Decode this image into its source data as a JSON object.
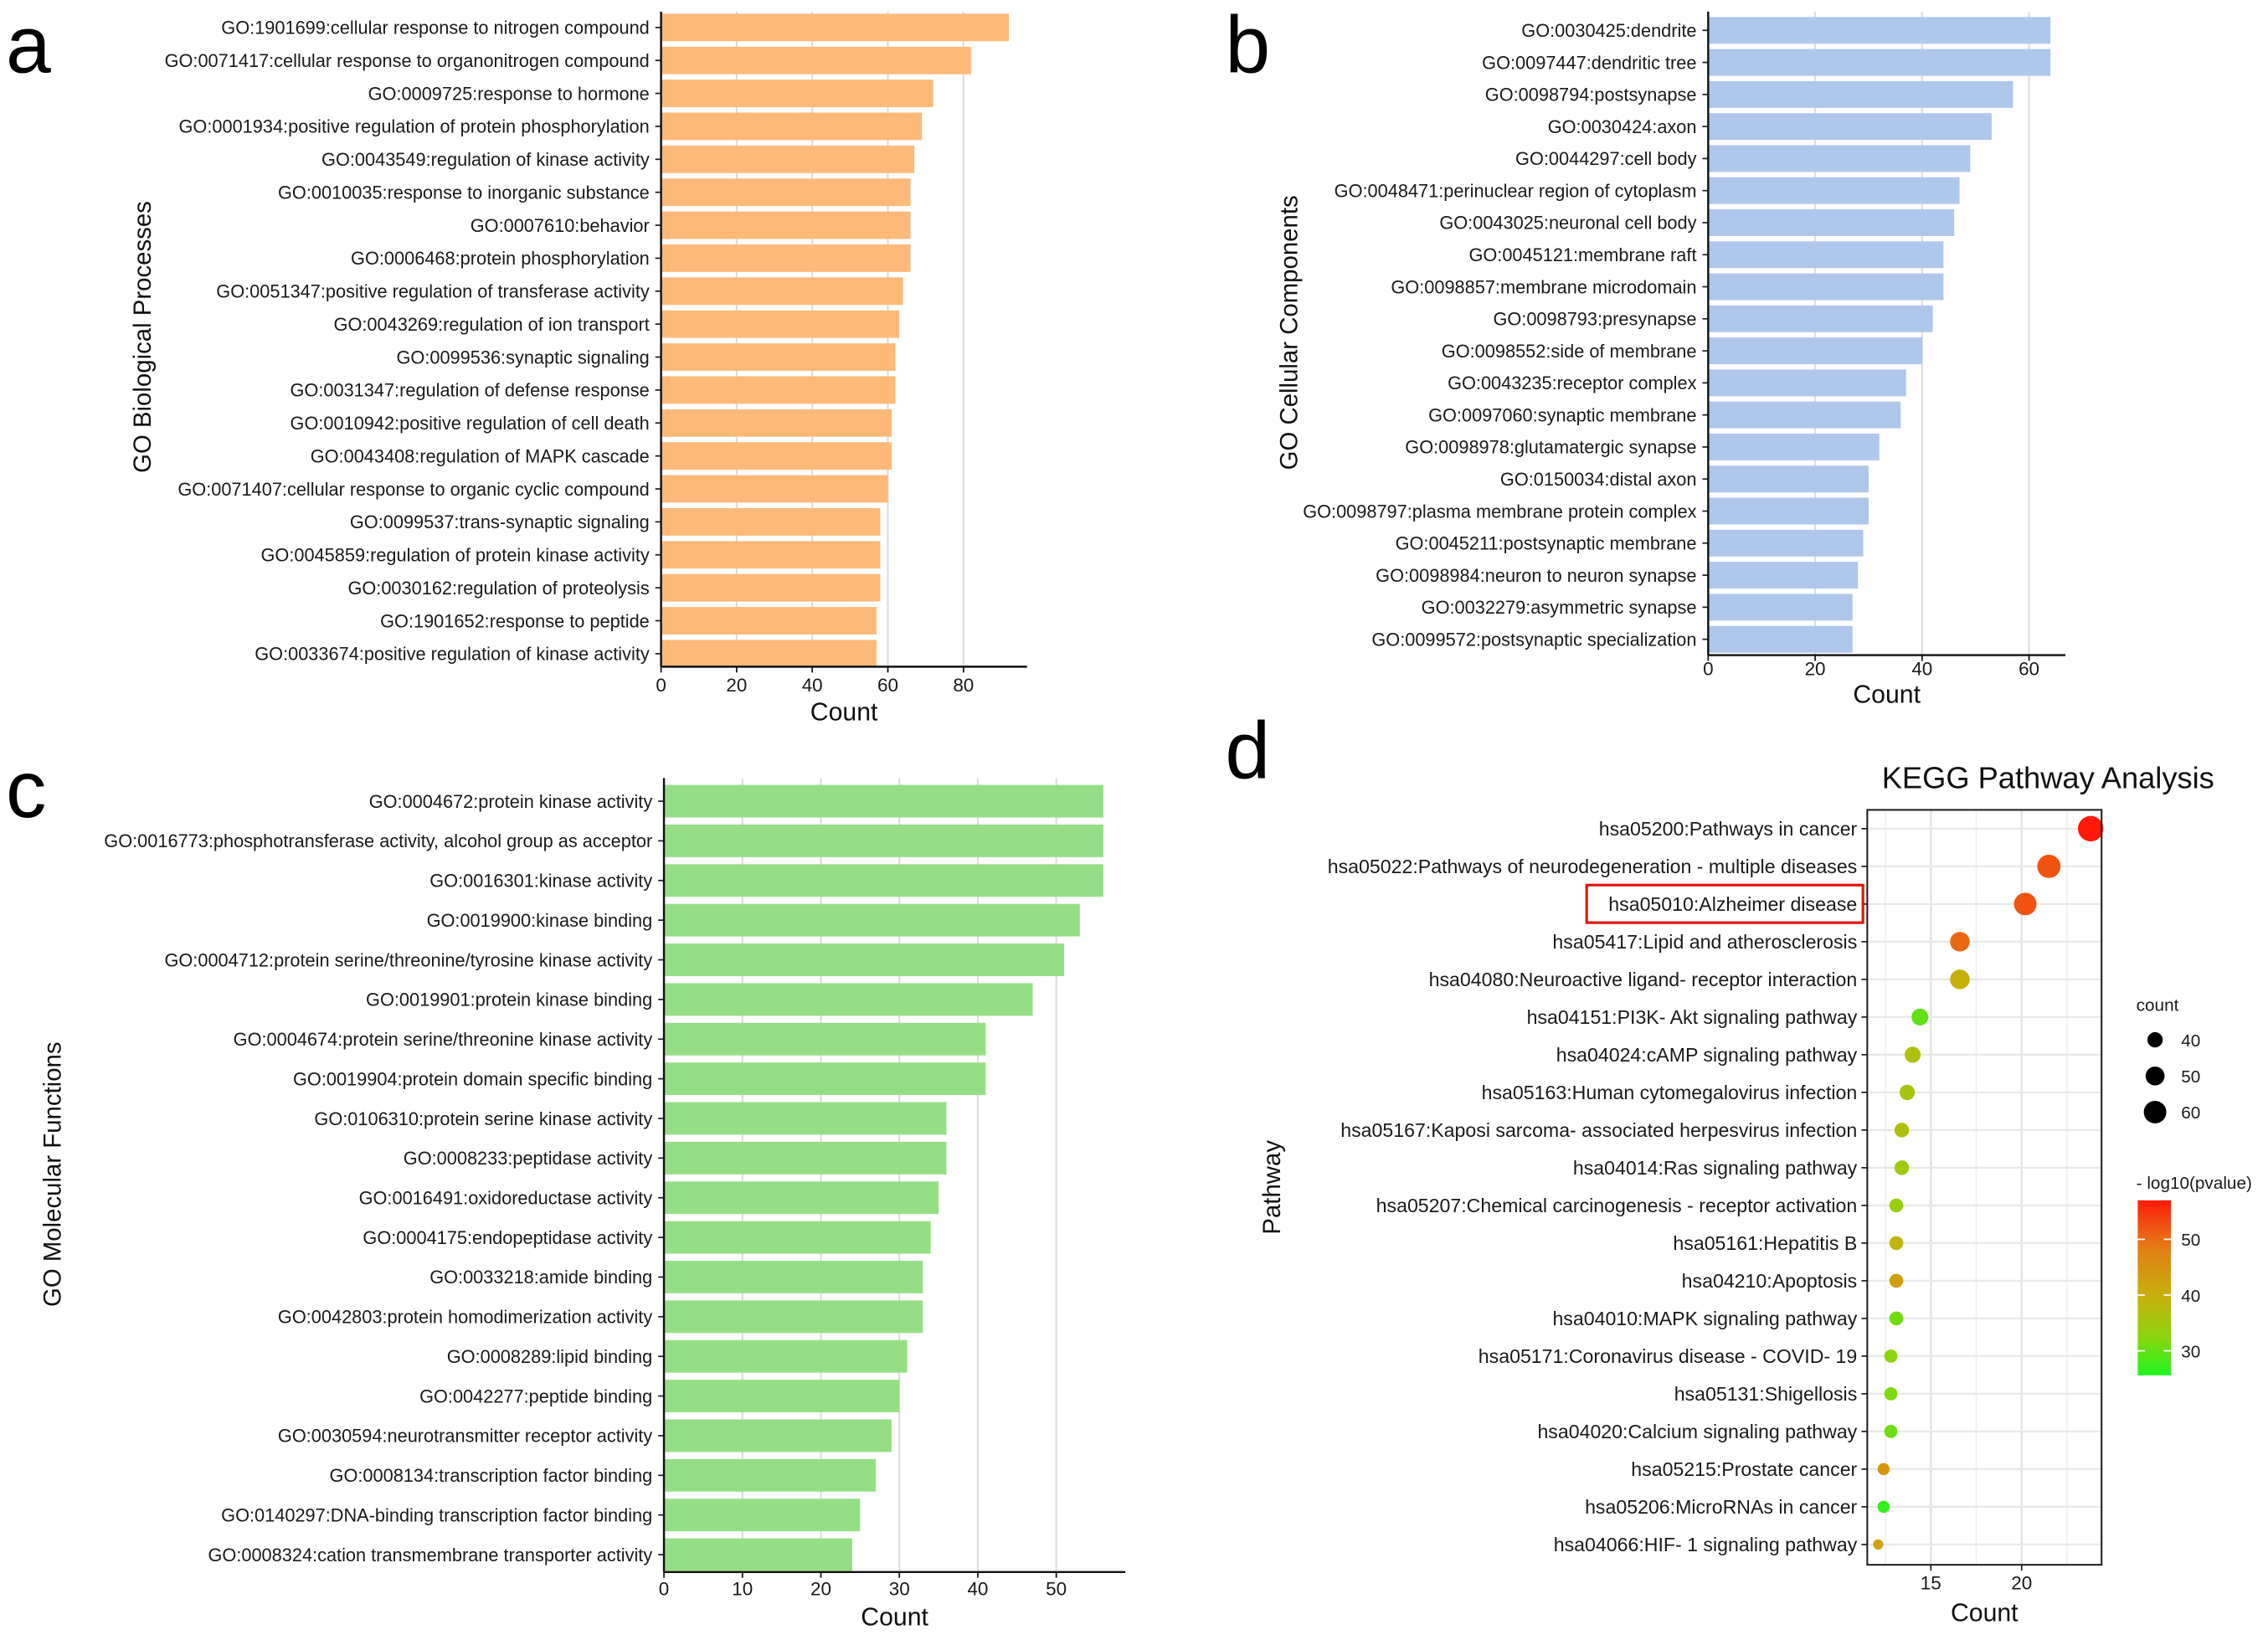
{
  "chart_data": [
    {
      "panel": "a",
      "type": "bar",
      "orientation": "horizontal",
      "ylabel": "GO Biological Processes",
      "xlabel": "Count",
      "xlim": [
        0,
        96.8
      ],
      "xticks": [
        0,
        20,
        40,
        60,
        80
      ],
      "grid": "vertical major",
      "color": "#FDB97A",
      "categories": [
        "GO:1901699:cellular response to nitrogen compound",
        "GO:0071417:cellular response to organonitrogen compound",
        "GO:0009725:response to hormone",
        "GO:0001934:positive regulation of protein phosphorylation",
        "GO:0043549:regulation of kinase activity",
        "GO:0010035:response to inorganic substance",
        "GO:0007610:behavior",
        "GO:0006468:protein phosphorylation",
        "GO:0051347:positive regulation of transferase activity",
        "GO:0043269:regulation of ion transport",
        "GO:0099536:synaptic signaling",
        "GO:0031347:regulation of defense response",
        "GO:0010942:positive regulation of cell death",
        "GO:0043408:regulation of MAPK cascade",
        "GO:0071407:cellular response to organic cyclic compound",
        "GO:0099537:trans-synaptic signaling",
        "GO:0045859:regulation of protein kinase activity",
        "GO:0030162:regulation of proteolysis",
        "GO:1901652:response to peptide",
        "GO:0033674:positive regulation of kinase activity"
      ],
      "values": [
        92,
        82,
        72,
        69,
        67,
        66,
        66,
        66,
        64,
        63,
        62,
        62,
        61,
        61,
        60,
        58,
        58,
        58,
        57,
        57
      ]
    },
    {
      "panel": "b",
      "type": "bar",
      "orientation": "horizontal",
      "ylabel": "GO Cellular Components",
      "xlabel": "Count",
      "xlim": [
        0,
        66.8
      ],
      "xticks": [
        0,
        20,
        40,
        60
      ],
      "grid": "vertical major",
      "color": "#AEC7EA",
      "categories": [
        "GO:0030425:dendrite",
        "GO:0097447:dendritic tree",
        "GO:0098794:postsynapse",
        "GO:0030424:axon",
        "GO:0044297:cell body",
        "GO:0048471:perinuclear region of cytoplasm",
        "GO:0043025:neuronal cell body",
        "GO:0045121:membrane raft",
        "GO:0098857:membrane microdomain",
        "GO:0098793:presynapse",
        "GO:0098552:side of membrane",
        "GO:0043235:receptor complex",
        "GO:0097060:synaptic membrane",
        "GO:0098978:glutamatergic synapse",
        "GO:0150034:distal axon",
        "GO:0098797:plasma membrane protein complex",
        "GO:0045211:postsynaptic membrane",
        "GO:0098984:neuron to neuron synapse",
        "GO:0032279:asymmetric synapse",
        "GO:0099572:postsynaptic specialization"
      ],
      "values": [
        64,
        64,
        57,
        53,
        49,
        47,
        46,
        44,
        44,
        42,
        40,
        37,
        36,
        32,
        30,
        30,
        29,
        28,
        27,
        27
      ]
    },
    {
      "panel": "c",
      "type": "bar",
      "orientation": "horizontal",
      "ylabel": "GO Molecular Functions",
      "xlabel": "Count",
      "xlim": [
        0,
        58.8
      ],
      "xticks": [
        0,
        10,
        20,
        30,
        40,
        50
      ],
      "grid": "vertical major",
      "color": "#96DE86",
      "categories": [
        "GO:0004672:protein kinase activity",
        "GO:0016773:phosphotransferase activity, alcohol group as acceptor",
        "GO:0016301:kinase activity",
        "GO:0019900:kinase binding",
        "GO:0004712:protein serine/threonine/tyrosine kinase activity",
        "GO:0019901:protein kinase binding",
        "GO:0004674:protein serine/threonine kinase activity",
        "GO:0019904:protein domain specific binding",
        "GO:0106310:protein serine kinase activity",
        "GO:0008233:peptidase activity",
        "GO:0016491:oxidoreductase activity",
        "GO:0004175:endopeptidase activity",
        "GO:0033218:amide binding",
        "GO:0042803:protein homodimerization activity",
        "GO:0008289:lipid binding",
        "GO:0042277:peptide binding",
        "GO:0030594:neurotransmitter receptor activity",
        "GO:0008134:transcription factor binding",
        "GO:0140297:DNA-binding transcription factor binding",
        "GO:0008324:cation transmembrane transporter activity"
      ],
      "values": [
        56,
        56,
        56,
        53,
        51,
        47,
        41,
        41,
        36,
        36,
        35,
        34,
        33,
        33,
        31,
        30,
        29,
        27,
        25,
        24
      ]
    },
    {
      "panel": "d",
      "type": "scatter",
      "title": "KEGG Pathway Analysis",
      "ylabel": "Pathway",
      "xlabel": "Count",
      "xlim": [
        11.5,
        24.4
      ],
      "xticks": [
        15,
        20
      ],
      "grid": "major and minor",
      "highlighted": "hsa05010:Alzheimer disease",
      "size_legend": {
        "title": "count",
        "values": [
          40,
          50,
          60
        ]
      },
      "color_legend": {
        "title": "- log10(pvalue)",
        "ticks": [
          30,
          40,
          50
        ],
        "range": [
          25.6,
          57
        ]
      },
      "categories": [
        "hsa05200:Pathways in cancer",
        "hsa05022:Pathways of neurodegeneration -  multiple diseases",
        "hsa05010:Alzheimer disease",
        "hsa05417:Lipid and atherosclerosis",
        "hsa04080:Neuroactive ligand- receptor interaction",
        "hsa04151:PI3K- Akt signaling pathway",
        "hsa04024:cAMP signaling pathway",
        "hsa05163:Human cytomegalovirus infection",
        "hsa05167:Kaposi sarcoma- associated herpesvirus infection",
        "hsa04014:Ras signaling pathway",
        "hsa05207:Chemical carcinogenesis -  receptor activation",
        "hsa05161:Hepatitis B",
        "hsa04210:Apoptosis",
        "hsa04010:MAPK signaling pathway",
        "hsa05171:Coronavirus disease -  COVID- 19",
        "hsa05131:Shigellosis",
        "hsa04020:Calcium signaling pathway",
        "hsa05215:Prostate cancer",
        "hsa05206:MicroRNAs in cancer",
        "hsa04066:HIF- 1 signaling pathway"
      ],
      "x": [
        23.8,
        21.5,
        20.2,
        16.6,
        16.6,
        14.4,
        14.0,
        13.7,
        13.4,
        13.4,
        13.1,
        13.1,
        13.1,
        13.1,
        12.8,
        12.8,
        12.8,
        12.4,
        12.4,
        12.1
      ],
      "size": [
        68,
        62,
        60,
        52,
        52,
        44,
        42,
        40,
        38,
        38,
        36,
        36,
        36,
        36,
        34,
        34,
        34,
        31,
        31,
        26
      ],
      "neglog10p": [
        57,
        52,
        52,
        50,
        40,
        30,
        37,
        36,
        37,
        35,
        34,
        39,
        43,
        31,
        33,
        32,
        31,
        44,
        27,
        42
      ]
    }
  ],
  "panel_letters": [
    "a",
    "b",
    "c",
    "d"
  ]
}
